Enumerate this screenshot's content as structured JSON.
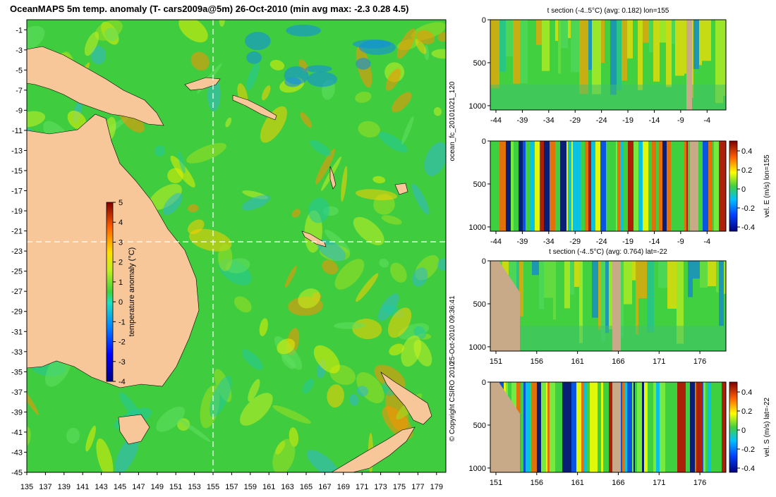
{
  "chart_data": [
    {
      "type": "heatmap",
      "title": "OceanMAPS 5m temp. anomaly (T- cars2009a@5m) 26-Oct-2010 (min avg max: -2.3 0.28 4.5)",
      "x_ticks": [
        "135",
        "137",
        "139",
        "141",
        "143",
        "145",
        "147",
        "149",
        "151",
        "153",
        "155",
        "157",
        "159",
        "161",
        "163",
        "165",
        "167",
        "169",
        "171",
        "173",
        "175",
        "177",
        "179"
      ],
      "y_ticks": [
        "-1",
        "-3",
        "-5",
        "-7",
        "-9",
        "-11",
        "-13",
        "-15",
        "-17",
        "-19",
        "-21",
        "-23",
        "-25",
        "-27",
        "-29",
        "-31",
        "-33",
        "-35",
        "-37",
        "-39",
        "-41",
        "-43",
        "-45"
      ],
      "xlim": [
        135,
        180
      ],
      "ylim": [
        -45,
        0
      ],
      "colorbar": {
        "label": "temperature anomaly (°C)",
        "ticks": [
          "5",
          "4",
          "3",
          "2",
          "1",
          "0",
          "-1",
          "-2",
          "-3",
          "-4"
        ],
        "range": [
          -4,
          5
        ]
      },
      "crosshair": {
        "lon": 155,
        "lat": -22
      }
    },
    {
      "type": "heatmap",
      "title": "t section (-4..5°C) (avg: 0.182) lon=155",
      "x_ticks": [
        "-44",
        "-39",
        "-34",
        "-29",
        "-24",
        "-19",
        "-14",
        "-9",
        "-4"
      ],
      "y_ticks": [
        "0",
        "500",
        "1000"
      ]
    },
    {
      "type": "heatmap",
      "title": "",
      "x_ticks": [
        "-44",
        "-39",
        "-34",
        "-29",
        "-24",
        "-19",
        "-14",
        "-9",
        "-4"
      ],
      "y_ticks": [
        "0",
        "500",
        "1000"
      ],
      "colorbar": {
        "label": "vel. E (m/s) lon=155",
        "ticks": [
          "0.4",
          "0.2",
          "0",
          "-0.2",
          "-0.4"
        ]
      }
    },
    {
      "type": "heatmap",
      "title": "t section (-4..5°C) (avg: 0.764) lat=-22",
      "x_ticks": [
        "151",
        "156",
        "161",
        "166",
        "171",
        "176"
      ],
      "y_ticks": [
        "0",
        "500",
        "1000"
      ]
    },
    {
      "type": "heatmap",
      "title": "",
      "x_ticks": [
        "151",
        "156",
        "161",
        "166",
        "171",
        "176"
      ],
      "y_ticks": [
        "0",
        "500",
        "1000"
      ],
      "colorbar": {
        "label": "vel. S (m/s) lat=-22",
        "ticks": [
          "0.4",
          "0.2",
          "0",
          "-0.2",
          "-0.4"
        ]
      }
    }
  ],
  "side_labels": {
    "run": "ocean_fc_20101021_120",
    "time": "25-Oct-2010 09:36:41",
    "copyright": "© Copyright CSIRO 2010"
  },
  "colors": {
    "land": "#f7c79a",
    "section_land": "#c8aa88",
    "ocean": "#3fcc3f"
  }
}
